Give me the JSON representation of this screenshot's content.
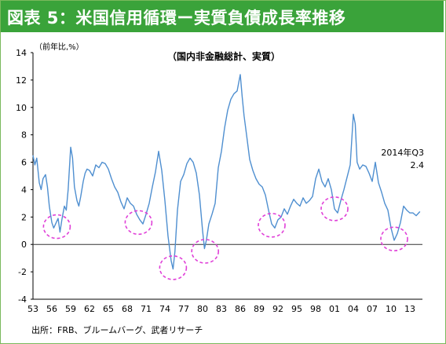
{
  "header": {
    "title": "図表 5：米国信用循環ー実質負債成長率推移"
  },
  "source": "出所：FRB、ブルームバーグ、武者リサーチ",
  "colors": {
    "header_bg": "#3aa33a",
    "line": "#4f8fd0",
    "circle": "#e040d8",
    "axis": "#000000"
  },
  "chart_data": {
    "type": "line",
    "title": "（国内非金融総計、実質）",
    "ylabel": "（前年比,%）",
    "xlim": [
      1953,
      2015
    ],
    "ylim": [
      -4,
      14
    ],
    "yticks": [
      -4,
      -2,
      0,
      2,
      4,
      6,
      8,
      10,
      12,
      14
    ],
    "xticks": [
      "53",
      "56",
      "59",
      "62",
      "65",
      "68",
      "71",
      "74",
      "77",
      "80",
      "83",
      "86",
      "89",
      "92",
      "95",
      "98",
      "01",
      "04",
      "07",
      "10",
      "13"
    ],
    "annotation": {
      "line1": "2014年Q3",
      "line2": "2.4"
    },
    "highlight_circles": [
      {
        "x": 1956.8,
        "y": 1.3
      },
      {
        "x": 1969.8,
        "y": 1.6
      },
      {
        "x": 1975.3,
        "y": -1.7
      },
      {
        "x": 1980.4,
        "y": -0.5
      },
      {
        "x": 1991.0,
        "y": 1.4
      },
      {
        "x": 2001.0,
        "y": 2.6
      },
      {
        "x": 2010.5,
        "y": 0.4
      }
    ],
    "series": [
      {
        "x": [
          1953.0,
          1953.3,
          1953.6,
          1954.0,
          1954.3,
          1954.6,
          1955.0,
          1955.3,
          1955.6,
          1956.0,
          1956.3,
          1956.6,
          1957.0,
          1957.3,
          1957.6,
          1958.0,
          1958.3,
          1958.6,
          1959.0,
          1959.3,
          1959.6,
          1960.0,
          1960.3,
          1960.6,
          1961.0,
          1961.3,
          1961.6,
          1962.0,
          1962.5,
          1963.0,
          1963.5,
          1964.0,
          1964.5,
          1965.0,
          1965.5,
          1966.0,
          1966.5,
          1967.0,
          1967.5,
          1968.0,
          1968.5,
          1969.0,
          1969.5,
          1970.0,
          1970.5,
          1971.0,
          1971.5,
          1972.0,
          1972.5,
          1973.0,
          1973.5,
          1974.0,
          1974.5,
          1975.0,
          1975.3,
          1975.6,
          1976.0,
          1976.5,
          1977.0,
          1977.5,
          1978.0,
          1978.5,
          1979.0,
          1979.5,
          1980.0,
          1980.3,
          1980.6,
          1981.0,
          1981.5,
          1982.0,
          1982.5,
          1983.0,
          1983.5,
          1984.0,
          1984.5,
          1985.0,
          1985.5,
          1986.0,
          1986.3,
          1986.6,
          1987.0,
          1987.5,
          1988.0,
          1988.5,
          1989.0,
          1989.5,
          1990.0,
          1990.5,
          1991.0,
          1991.5,
          1992.0,
          1992.5,
          1993.0,
          1993.5,
          1994.0,
          1994.5,
          1995.0,
          1995.5,
          1996.0,
          1996.5,
          1997.0,
          1997.5,
          1998.0,
          1998.5,
          1999.0,
          1999.5,
          2000.0,
          2000.5,
          2001.0,
          2001.5,
          2002.0,
          2002.5,
          2003.0,
          2003.5,
          2004.0,
          2004.3,
          2004.6,
          2005.0,
          2005.5,
          2006.0,
          2006.5,
          2007.0,
          2007.5,
          2008.0,
          2008.5,
          2009.0,
          2009.5,
          2010.0,
          2010.5,
          2011.0,
          2011.5,
          2012.0,
          2012.5,
          2013.0,
          2013.5,
          2014.0,
          2014.6
        ],
        "y": [
          6.5,
          5.8,
          6.3,
          4.5,
          4.0,
          4.8,
          5.1,
          4.2,
          2.8,
          1.6,
          1.2,
          1.5,
          1.9,
          0.9,
          1.8,
          2.8,
          2.5,
          4.0,
          7.1,
          6.3,
          4.2,
          3.2,
          2.8,
          3.5,
          4.6,
          5.2,
          5.5,
          5.4,
          5.0,
          5.8,
          5.6,
          6.0,
          5.9,
          5.5,
          4.8,
          4.2,
          3.8,
          3.1,
          2.6,
          3.4,
          3.0,
          2.8,
          2.2,
          1.8,
          1.5,
          2.2,
          3.0,
          4.2,
          5.3,
          6.8,
          5.4,
          3.2,
          0.6,
          -1.2,
          -1.8,
          -0.5,
          2.5,
          4.6,
          5.1,
          5.9,
          6.3,
          6.0,
          5.2,
          3.6,
          1.0,
          -0.3,
          0.3,
          1.5,
          2.2,
          3.0,
          5.6,
          6.8,
          8.5,
          9.8,
          10.6,
          11.0,
          11.2,
          12.4,
          10.8,
          9.4,
          8.0,
          6.2,
          5.4,
          4.8,
          4.4,
          4.2,
          3.6,
          2.5,
          1.5,
          1.2,
          1.8,
          2.0,
          2.6,
          2.2,
          2.8,
          3.3,
          3.0,
          2.8,
          3.4,
          3.0,
          3.2,
          3.5,
          4.8,
          5.5,
          4.6,
          4.2,
          4.8,
          4.0,
          2.6,
          2.3,
          3.2,
          4.0,
          4.9,
          5.8,
          9.5,
          8.8,
          6.0,
          5.5,
          5.8,
          5.7,
          5.2,
          4.6,
          6.0,
          4.5,
          3.8,
          3.0,
          2.5,
          1.2,
          0.3,
          0.8,
          1.6,
          2.8,
          2.5,
          2.3,
          2.3,
          2.1,
          2.4
        ]
      }
    ]
  }
}
